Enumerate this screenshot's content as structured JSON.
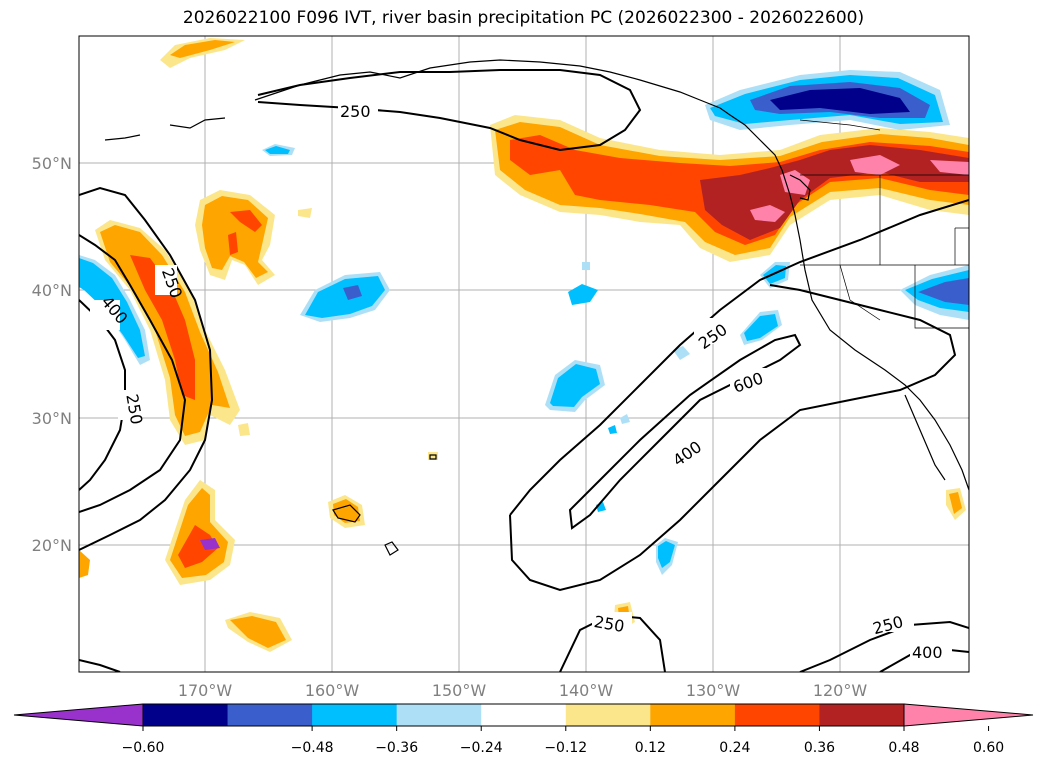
{
  "title": "2026022100 F096 IVT, river basin precipitation PC (2026022300 - 2026022600)",
  "lat_labels": [
    "50°N",
    "40°N",
    "30°N",
    "20°N"
  ],
  "lon_labels": [
    "170°W",
    "160°W",
    "150°W",
    "140°W",
    "130°W",
    "120°W"
  ],
  "contour_labels": {
    "c250_a": "250",
    "c400_a": "400",
    "c250_b": "250",
    "c250_c": "250",
    "c250_d": "250",
    "c600": "600",
    "c400_b": "400",
    "c250_e": "250",
    "c250_f": "250",
    "c400_c": "400"
  },
  "colorbar": {
    "ticks": [
      "−0.60",
      "−0.48",
      "−0.36",
      "−0.24",
      "−0.12",
      "0.12",
      "0.24",
      "0.36",
      "0.48",
      "0.60"
    ],
    "colors": [
      "#9932CC",
      "#00008B",
      "#3A5FCD",
      "#00BFFF",
      "#ADE0F7",
      "#FFFFFF",
      "#FCE68C",
      "#FFA500",
      "#FF4500",
      "#B22222",
      "#FF82AB"
    ]
  },
  "palette": {
    "purple": "#9932CC",
    "navy": "#00008B",
    "royal": "#3A5FCD",
    "sky": "#00BFFF",
    "light_sky": "#ADE0F7",
    "pale_yellow": "#FCE68C",
    "orange": "#FFA500",
    "orange_red": "#FF4500",
    "brick": "#B22222",
    "pink": "#FF82AB"
  }
}
